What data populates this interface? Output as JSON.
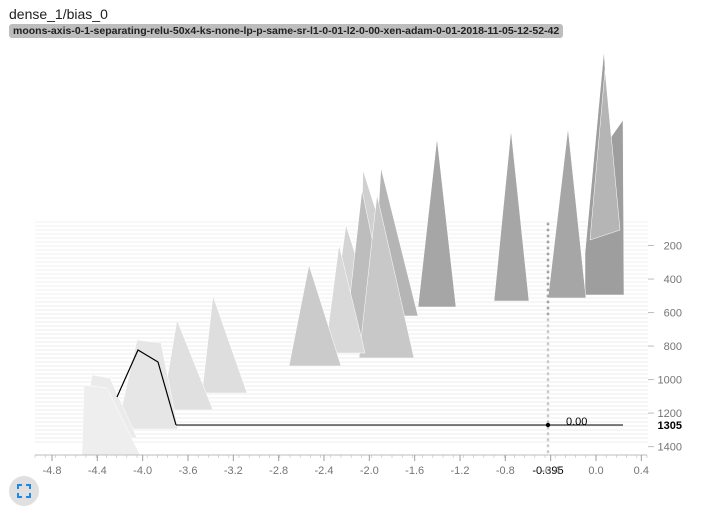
{
  "card": {
    "title": "dense_1/bias_0",
    "run": "moons-axis-0-1-separating-relu-50x4-ks-none-lp-p-same-sr-l1-0-01-l2-0-00-xen-adam-0-01-2018-11-05-12-52-42"
  },
  "controls": {
    "expand_icon": "fullscreen-icon"
  },
  "colors": {
    "far": "#999999",
    "near": "#e4e4e4",
    "highlight": "#000000",
    "tick": "#757575"
  },
  "chart_data": {
    "type": "area",
    "mode": "offset",
    "x_ticks": [
      "-4.8",
      "-4.4",
      "-4.0",
      "-3.6",
      "-3.2",
      "-2.8",
      "-2.4",
      "-2.0",
      "-1.6",
      "-1.2",
      "-0.8",
      "-0.4",
      "0.0",
      "0.4"
    ],
    "y_ticks": [
      "200",
      "400",
      "600",
      "800",
      "1000",
      "1200",
      "1400"
    ],
    "xlim": [
      -4.95,
      0.45
    ],
    "step_range": [
      0,
      1450
    ],
    "hover": {
      "x": "-0.395",
      "step": "1305",
      "value": "0.00"
    }
  }
}
